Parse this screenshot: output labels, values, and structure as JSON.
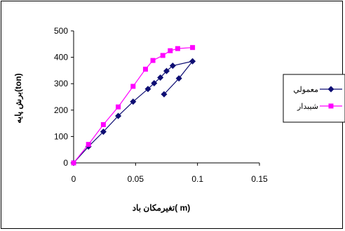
{
  "chart_data": {
    "type": "line",
    "xlabel": "تغیرمکان باد( m)",
    "ylabel": "برش پایه(ton)",
    "xlim": [
      0,
      0.15
    ],
    "ylim": [
      0,
      500
    ],
    "xticks": [
      "0",
      "0.05",
      "0.1",
      "0.15"
    ],
    "yticks": [
      "0",
      "100",
      "200",
      "300",
      "400",
      "500"
    ],
    "grid": false,
    "legend_position": "right",
    "series": [
      {
        "name": "معمولي",
        "color": "#0d0d73",
        "marker": "diamond",
        "x": [
          0,
          0.012,
          0.024,
          0.036,
          0.048,
          0.06,
          0.065,
          0.07,
          0.075,
          0.08,
          0.096,
          0.085,
          0.073
        ],
        "y": [
          0,
          62,
          118,
          178,
          232,
          280,
          302,
          323,
          348,
          368,
          385,
          320,
          260
        ]
      },
      {
        "name": "شيبدار",
        "color": "#ff00ff",
        "marker": "square",
        "x": [
          0,
          0.012,
          0.024,
          0.036,
          0.048,
          0.058,
          0.064,
          0.072,
          0.078,
          0.084,
          0.096
        ],
        "y": [
          0,
          70,
          145,
          212,
          290,
          355,
          388,
          407,
          425,
          433,
          437
        ]
      }
    ]
  }
}
